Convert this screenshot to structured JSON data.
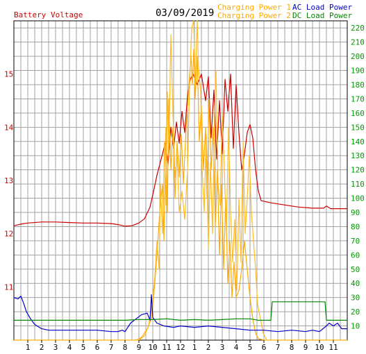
{
  "chart_data": {
    "type": "line",
    "date": "03/09/2019",
    "left_axis_label": "Battery Voltage",
    "left_ylim": [
      10,
      16
    ],
    "left_ticks": [
      "11",
      "12",
      "13",
      "14",
      "15"
    ],
    "right_ylim": [
      0,
      225
    ],
    "right_ticks": [
      "10",
      "20",
      "30",
      "40",
      "50",
      "60",
      "70",
      "80",
      "90",
      "100",
      "110",
      "120",
      "130",
      "140",
      "150",
      "160",
      "170",
      "180",
      "190",
      "200",
      "210",
      "220"
    ],
    "x_ticks": [
      "1",
      "2",
      "3",
      "4",
      "5",
      "6",
      "7",
      "8",
      "9",
      "10",
      "11",
      "12",
      "1",
      "2",
      "3",
      "4",
      "5",
      "6",
      "7",
      "8",
      "9",
      "10",
      "11"
    ],
    "xlim": [
      0,
      24
    ],
    "grid": true,
    "legend_position": "top",
    "legend": [
      "Charging Power 1",
      "Charging Power 2",
      "AC Load Power",
      "DC Load Power"
    ],
    "series": [
      {
        "name": "Battery Voltage",
        "axis": "left",
        "color": "#cc0000",
        "points": [
          [
            0,
            12.15
          ],
          [
            0.5,
            12.18
          ],
          [
            1,
            12.2
          ],
          [
            2,
            12.22
          ],
          [
            3,
            12.22
          ],
          [
            4,
            12.21
          ],
          [
            5,
            12.2
          ],
          [
            6,
            12.2
          ],
          [
            7,
            12.19
          ],
          [
            7.5,
            12.17
          ],
          [
            8,
            12.14
          ],
          [
            8.5,
            12.15
          ],
          [
            9,
            12.2
          ],
          [
            9.4,
            12.28
          ],
          [
            9.8,
            12.5
          ],
          [
            10.1,
            12.85
          ],
          [
            10.3,
            13.1
          ],
          [
            10.6,
            13.4
          ],
          [
            10.9,
            13.7
          ],
          [
            11.1,
            13.3
          ],
          [
            11.3,
            14.0
          ],
          [
            11.5,
            13.6
          ],
          [
            11.7,
            14.1
          ],
          [
            11.9,
            13.7
          ],
          [
            12.1,
            14.3
          ],
          [
            12.3,
            13.9
          ],
          [
            12.5,
            14.6
          ],
          [
            12.7,
            14.9
          ],
          [
            12.9,
            15.0
          ],
          [
            13.2,
            14.8
          ],
          [
            13.5,
            15.0
          ],
          [
            13.8,
            14.5
          ],
          [
            14.0,
            14.95
          ],
          [
            14.2,
            13.8
          ],
          [
            14.4,
            14.7
          ],
          [
            14.6,
            13.4
          ],
          [
            14.8,
            14.5
          ],
          [
            15.0,
            13.5
          ],
          [
            15.2,
            14.9
          ],
          [
            15.4,
            14.3
          ],
          [
            15.6,
            15.0
          ],
          [
            15.8,
            13.6
          ],
          [
            16.0,
            14.8
          ],
          [
            16.2,
            13.9
          ],
          [
            16.4,
            13.2
          ],
          [
            16.6,
            13.5
          ],
          [
            16.8,
            13.9
          ],
          [
            17.0,
            14.05
          ],
          [
            17.2,
            13.8
          ],
          [
            17.4,
            13.2
          ],
          [
            17.6,
            12.8
          ],
          [
            17.8,
            12.62
          ],
          [
            18.5,
            12.58
          ],
          [
            19.5,
            12.54
          ],
          [
            20.5,
            12.5
          ],
          [
            21.5,
            12.48
          ],
          [
            22.3,
            12.48
          ],
          [
            22.5,
            12.52
          ],
          [
            22.8,
            12.47
          ],
          [
            24,
            12.47
          ]
        ]
      },
      {
        "name": "Charging Power 1",
        "axis": "right",
        "color": "#ffaa00",
        "points": [
          [
            0,
            0
          ],
          [
            8.8,
            0
          ],
          [
            9.2,
            2
          ],
          [
            9.6,
            8
          ],
          [
            9.9,
            15
          ],
          [
            10.1,
            35
          ],
          [
            10.3,
            60
          ],
          [
            10.5,
            90
          ],
          [
            10.7,
            110
          ],
          [
            10.8,
            70
          ],
          [
            10.95,
            150
          ],
          [
            11.05,
            90
          ],
          [
            11.15,
            170
          ],
          [
            11.3,
            120
          ],
          [
            11.45,
            150
          ],
          [
            11.6,
            100
          ],
          [
            11.75,
            140
          ],
          [
            11.9,
            115
          ],
          [
            12.05,
            145
          ],
          [
            12.2,
            110
          ],
          [
            12.4,
            150
          ],
          [
            12.6,
            180
          ],
          [
            12.75,
            200
          ],
          [
            12.85,
            180
          ],
          [
            12.95,
            205
          ],
          [
            13.05,
            170
          ],
          [
            13.2,
            200
          ],
          [
            13.35,
            140
          ],
          [
            13.5,
            165
          ],
          [
            13.65,
            120
          ],
          [
            13.8,
            150
          ],
          [
            13.9,
            100
          ],
          [
            14.05,
            170
          ],
          [
            14.2,
            120
          ],
          [
            14.35,
            150
          ],
          [
            14.5,
            80
          ],
          [
            14.65,
            120
          ],
          [
            14.8,
            60
          ],
          [
            14.95,
            110
          ],
          [
            15.1,
            50
          ],
          [
            15.25,
            100
          ],
          [
            15.4,
            40
          ],
          [
            15.55,
            70
          ],
          [
            15.7,
            30
          ],
          [
            15.85,
            55
          ],
          [
            16.0,
            30
          ],
          [
            16.2,
            35
          ],
          [
            16.4,
            50
          ],
          [
            16.6,
            70
          ],
          [
            16.8,
            50
          ],
          [
            17.0,
            30
          ],
          [
            17.2,
            15
          ],
          [
            17.4,
            5
          ],
          [
            17.6,
            1
          ],
          [
            18.0,
            0
          ],
          [
            24,
            0
          ]
        ]
      },
      {
        "name": "Charging Power 2",
        "axis": "right",
        "color": "#ffbb22",
        "points": [
          [
            0,
            0
          ],
          [
            9.0,
            0
          ],
          [
            9.4,
            3
          ],
          [
            9.7,
            10
          ],
          [
            9.95,
            25
          ],
          [
            10.15,
            45
          ],
          [
            10.3,
            70
          ],
          [
            10.45,
            50
          ],
          [
            10.55,
            110
          ],
          [
            10.7,
            75
          ],
          [
            10.85,
            140
          ],
          [
            10.95,
            95
          ],
          [
            11.05,
            175
          ],
          [
            11.15,
            130
          ],
          [
            11.3,
            215
          ],
          [
            11.45,
            160
          ],
          [
            11.6,
            115
          ],
          [
            11.75,
            130
          ],
          [
            11.9,
            90
          ],
          [
            12.1,
            105
          ],
          [
            12.3,
            85
          ],
          [
            12.5,
            120
          ],
          [
            12.65,
            180
          ],
          [
            12.8,
            220
          ],
          [
            12.95,
            225
          ],
          [
            13.05,
            180
          ],
          [
            13.2,
            225
          ],
          [
            13.3,
            190
          ],
          [
            13.45,
            175
          ],
          [
            13.55,
            120
          ],
          [
            13.7,
            90
          ],
          [
            13.85,
            145
          ],
          [
            14.0,
            65
          ],
          [
            14.15,
            125
          ],
          [
            14.3,
            75
          ],
          [
            14.45,
            160
          ],
          [
            14.55,
            190
          ],
          [
            14.7,
            110
          ],
          [
            14.85,
            95
          ],
          [
            15.0,
            160
          ],
          [
            15.15,
            120
          ],
          [
            15.3,
            75
          ],
          [
            15.45,
            150
          ],
          [
            15.6,
            90
          ],
          [
            15.75,
            55
          ],
          [
            15.9,
            85
          ],
          [
            16.05,
            35
          ],
          [
            16.2,
            100
          ],
          [
            16.35,
            55
          ],
          [
            16.5,
            140
          ],
          [
            16.65,
            75
          ],
          [
            16.8,
            100
          ],
          [
            16.95,
            130
          ],
          [
            17.1,
            90
          ],
          [
            17.25,
            70
          ],
          [
            17.4,
            50
          ],
          [
            17.55,
            25
          ],
          [
            17.75,
            15
          ],
          [
            17.95,
            5
          ],
          [
            18.2,
            0
          ],
          [
            24,
            0
          ]
        ]
      },
      {
        "name": "AC Load Power",
        "axis": "right",
        "color": "#0000cc",
        "points": [
          [
            0,
            30
          ],
          [
            0.3,
            29
          ],
          [
            0.5,
            31
          ],
          [
            0.7,
            26
          ],
          [
            0.9,
            20
          ],
          [
            1.2,
            15
          ],
          [
            1.5,
            11
          ],
          [
            2,
            8
          ],
          [
            2.5,
            7
          ],
          [
            3,
            7
          ],
          [
            4,
            7
          ],
          [
            5,
            7
          ],
          [
            6,
            7
          ],
          [
            7,
            6
          ],
          [
            7.5,
            6
          ],
          [
            7.8,
            7
          ],
          [
            8,
            6
          ],
          [
            8.4,
            12
          ],
          [
            8.8,
            15
          ],
          [
            9.2,
            18
          ],
          [
            9.6,
            19
          ],
          [
            9.8,
            14
          ],
          [
            9.9,
            32
          ],
          [
            10.0,
            16
          ],
          [
            10.3,
            12
          ],
          [
            10.8,
            10
          ],
          [
            11.5,
            9
          ],
          [
            12,
            10
          ],
          [
            13,
            9
          ],
          [
            14,
            10
          ],
          [
            15,
            9
          ],
          [
            16,
            8
          ],
          [
            17,
            7
          ],
          [
            18,
            7
          ],
          [
            19,
            6
          ],
          [
            20,
            7
          ],
          [
            21,
            6
          ],
          [
            21.5,
            7
          ],
          [
            22,
            6
          ],
          [
            22.5,
            10
          ],
          [
            22.7,
            12
          ],
          [
            23,
            10
          ],
          [
            23.3,
            12
          ],
          [
            23.6,
            8
          ],
          [
            24,
            8
          ]
        ]
      },
      {
        "name": "DC Load Power",
        "axis": "right",
        "color": "#008800",
        "points": [
          [
            0,
            14
          ],
          [
            1,
            14
          ],
          [
            2,
            14
          ],
          [
            3,
            14
          ],
          [
            4,
            14
          ],
          [
            5,
            14
          ],
          [
            6,
            14
          ],
          [
            7,
            14
          ],
          [
            8,
            14
          ],
          [
            9,
            14.5
          ],
          [
            10,
            14.5
          ],
          [
            11,
            15
          ],
          [
            12,
            14
          ],
          [
            13,
            14.5
          ],
          [
            14,
            14
          ],
          [
            15,
            14.5
          ],
          [
            16,
            15
          ],
          [
            17,
            15
          ],
          [
            17.6,
            14
          ],
          [
            18.5,
            14
          ],
          [
            18.6,
            27
          ],
          [
            20,
            27
          ],
          [
            21,
            27
          ],
          [
            22.4,
            27
          ],
          [
            22.5,
            14
          ],
          [
            23,
            14
          ],
          [
            24,
            14
          ]
        ]
      }
    ]
  }
}
